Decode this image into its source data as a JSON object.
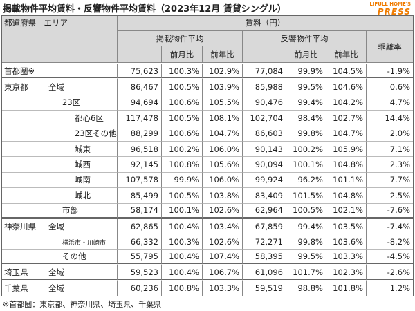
{
  "header": {
    "title": "掲載物件平均賃料・反響物件平均賃料（2023年12月 賃貸シングル）",
    "logo_top": "LIFULL HOME'S",
    "logo_bottom": "PRESS"
  },
  "table": {
    "head": {
      "area": "都道府県　エリア",
      "rent": "賃料（円）",
      "listing": "掲載物件平均",
      "response": "反響物件平均",
      "mom": "前月比",
      "yoy": "前年比",
      "gap": "乖離率"
    },
    "rows": [
      {
        "area": "首都圏※",
        "values": [
          "75,623",
          "100.3%",
          "102.9%",
          "77,084",
          "99.9%",
          "104.5%",
          "-1.9%"
        ]
      },
      {
        "area": "東京都",
        "scope": "全域",
        "values": [
          "86,467",
          "100.5%",
          "103.9%",
          "85,988",
          "99.5%",
          "104.6%",
          "0.6%"
        ]
      },
      {
        "area": "23区",
        "values": [
          "94,694",
          "100.6%",
          "105.5%",
          "90,476",
          "99.4%",
          "104.2%",
          "4.7%"
        ]
      },
      {
        "area": "都心6区",
        "values": [
          "117,478",
          "100.5%",
          "108.1%",
          "102,704",
          "98.4%",
          "102.7%",
          "14.4%"
        ]
      },
      {
        "area": "23区その他",
        "values": [
          "88,299",
          "100.6%",
          "104.7%",
          "86,603",
          "99.8%",
          "104.7%",
          "2.0%"
        ]
      },
      {
        "area": "城東",
        "values": [
          "96,518",
          "100.2%",
          "106.0%",
          "90,143",
          "100.2%",
          "105.9%",
          "7.1%"
        ]
      },
      {
        "area": "城西",
        "values": [
          "92,145",
          "100.8%",
          "105.6%",
          "90,094",
          "100.1%",
          "104.8%",
          "2.3%"
        ]
      },
      {
        "area": "城南",
        "values": [
          "107,578",
          "99.9%",
          "106.0%",
          "99,924",
          "96.2%",
          "101.1%",
          "7.7%"
        ]
      },
      {
        "area": "城北",
        "values": [
          "85,499",
          "100.5%",
          "103.8%",
          "83,409",
          "101.5%",
          "104.8%",
          "2.5%"
        ]
      },
      {
        "area": "市部",
        "values": [
          "58,174",
          "100.1%",
          "102.6%",
          "62,964",
          "100.5%",
          "102.1%",
          "-7.6%"
        ]
      },
      {
        "area": "神奈川県",
        "scope": "全域",
        "values": [
          "62,865",
          "100.4%",
          "103.4%",
          "67,859",
          "99.4%",
          "103.5%",
          "-7.4%"
        ]
      },
      {
        "area": "横浜市・川崎市",
        "values": [
          "66,332",
          "100.3%",
          "102.6%",
          "72,271",
          "99.8%",
          "103.6%",
          "-8.2%"
        ]
      },
      {
        "area": "その他",
        "values": [
          "55,795",
          "100.4%",
          "107.4%",
          "58,395",
          "99.5%",
          "103.3%",
          "-4.5%"
        ]
      },
      {
        "area": "埼玉県",
        "scope": "全域",
        "values": [
          "59,523",
          "100.4%",
          "106.7%",
          "61,096",
          "101.7%",
          "102.3%",
          "-2.6%"
        ]
      },
      {
        "area": "千葉県",
        "scope": "全域",
        "values": [
          "60,236",
          "100.8%",
          "103.3%",
          "59,519",
          "98.8%",
          "101.8%",
          "1.2%"
        ]
      }
    ]
  },
  "footnote": "※首都圏：東京都、神奈川県、埼玉県、千葉県"
}
